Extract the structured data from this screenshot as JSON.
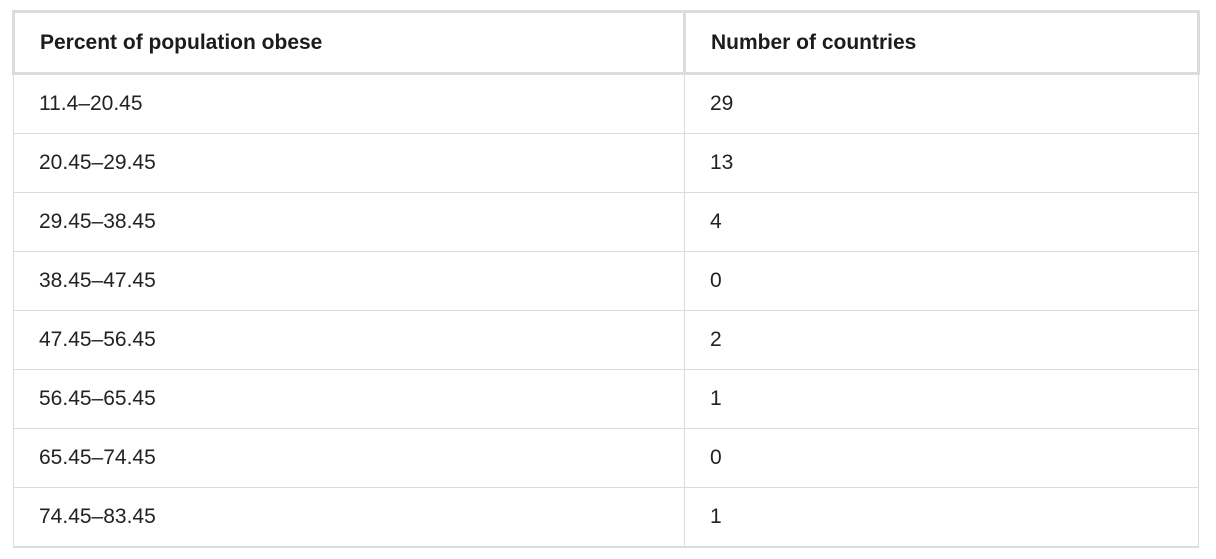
{
  "table": {
    "headers": [
      "Percent of population obese",
      "Number of countries"
    ],
    "rows": [
      [
        "11.4–20.45",
        "29"
      ],
      [
        "20.45–29.45",
        "13"
      ],
      [
        "29.45–38.45",
        "4"
      ],
      [
        "38.45–47.45",
        "0"
      ],
      [
        "47.45–56.45",
        "2"
      ],
      [
        "56.45–65.45",
        "1"
      ],
      [
        "65.45–74.45",
        "0"
      ],
      [
        "74.45–83.45",
        "1"
      ]
    ]
  }
}
